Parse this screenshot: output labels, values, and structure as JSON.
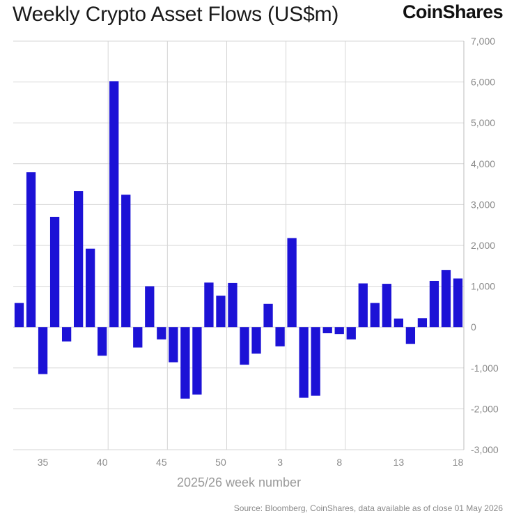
{
  "header": {
    "title": "Weekly Crypto Asset Flows (US$m)",
    "brand": "CoinShares"
  },
  "footer": {
    "source": "Source: Bloomberg, CoinShares, data available as of close 01 May 2026"
  },
  "colors": {
    "bar": "#1c12d6",
    "grid": "#d6d6d6",
    "axis_text": "#8a8a8a"
  },
  "chart_data": {
    "type": "bar",
    "xlabel": "2025/26 week number",
    "ylabel": "",
    "ylim": [
      -3000,
      7000
    ],
    "yticks": [
      7000,
      6000,
      5000,
      4000,
      3000,
      2000,
      1000,
      0,
      -1000,
      -2000,
      -3000
    ],
    "ytick_labels": [
      "7,000",
      "6,000",
      "5,000",
      "4,000",
      "3,000",
      "2,000",
      "1,000",
      "0",
      "-1,000",
      "-2,000",
      "-3,000"
    ],
    "grid": true,
    "x_tick_labels": [
      "35",
      "40",
      "45",
      "50",
      "3",
      "8",
      "13",
      "18"
    ],
    "categories": [
      "33",
      "34",
      "35",
      "36",
      "37",
      "38",
      "39",
      "40",
      "41",
      "42",
      "43",
      "44",
      "45",
      "46",
      "47",
      "48",
      "49",
      "50",
      "51",
      "52",
      "1",
      "2",
      "3",
      "4",
      "5",
      "6",
      "7",
      "8",
      "9",
      "10",
      "11",
      "12",
      "13",
      "14",
      "15",
      "16",
      "17",
      "18"
    ],
    "values": [
      590,
      3790,
      -1150,
      2700,
      -350,
      3330,
      1920,
      -700,
      6020,
      3240,
      -500,
      1000,
      -300,
      -860,
      -1750,
      -1650,
      1090,
      770,
      1080,
      -920,
      -650,
      570,
      -470,
      2180,
      -1730,
      -1680,
      -150,
      -170,
      -300,
      1070,
      590,
      1060,
      210,
      -410,
      220,
      1130,
      1400,
      1190
    ]
  }
}
